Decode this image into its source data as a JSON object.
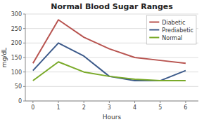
{
  "chart_data": {
    "type": "line",
    "title": "Normal Blood Sugar Ranges",
    "xlabel": "Hours",
    "ylabel": "mg/dL",
    "x": [
      0,
      1,
      2,
      3,
      4,
      5,
      6
    ],
    "series": [
      {
        "name": "Diabetic",
        "color": "#b85450",
        "values": [
          130,
          280,
          220,
          180,
          150,
          140,
          130
        ]
      },
      {
        "name": "Prediabetic",
        "color": "#3c5a8a",
        "values": [
          105,
          200,
          155,
          85,
          70,
          70,
          105
        ]
      },
      {
        "name": "Normal",
        "color": "#7aaa2a",
        "values": [
          70,
          135,
          100,
          85,
          75,
          70,
          70
        ]
      }
    ],
    "xlim": [
      -0.3,
      6.5
    ],
    "ylim": [
      0,
      300
    ],
    "xticks": [
      0,
      1,
      2,
      3,
      4,
      5,
      6
    ],
    "yticks": [
      0,
      50,
      100,
      150,
      200,
      250,
      300
    ],
    "grid": true,
    "legend": "upper right"
  }
}
